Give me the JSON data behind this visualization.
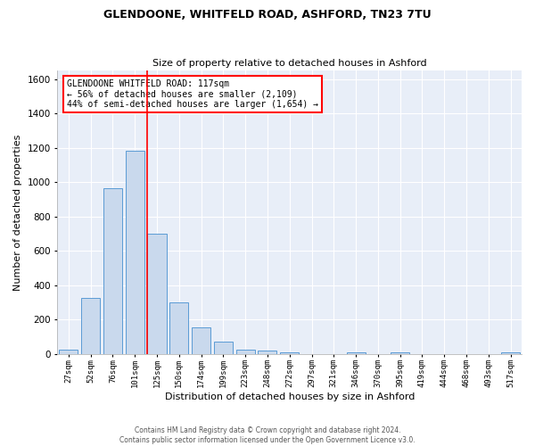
{
  "title1": "GLENDOONE, WHITFELD ROAD, ASHFORD, TN23 7TU",
  "title2": "Size of property relative to detached houses in Ashford",
  "xlabel": "Distribution of detached houses by size in Ashford",
  "ylabel": "Number of detached properties",
  "bar_color": "#c9d9ed",
  "bar_edge_color": "#5b9bd5",
  "background_color": "#e8eef8",
  "grid_color": "white",
  "categories": [
    "27sqm",
    "52sqm",
    "76sqm",
    "101sqm",
    "125sqm",
    "150sqm",
    "174sqm",
    "199sqm",
    "223sqm",
    "248sqm",
    "272sqm",
    "297sqm",
    "321sqm",
    "346sqm",
    "370sqm",
    "395sqm",
    "419sqm",
    "444sqm",
    "468sqm",
    "493sqm",
    "517sqm"
  ],
  "values": [
    25,
    325,
    965,
    1185,
    700,
    300,
    155,
    70,
    25,
    18,
    10,
    0,
    0,
    10,
    0,
    10,
    0,
    0,
    0,
    0,
    10
  ],
  "ylim": [
    0,
    1650
  ],
  "yticks": [
    0,
    200,
    400,
    600,
    800,
    1000,
    1200,
    1400,
    1600
  ],
  "red_line_x": 3.55,
  "annotation_title": "GLENDOONE WHITFELD ROAD: 117sqm",
  "annotation_line2": "← 56% of detached houses are smaller (2,109)",
  "annotation_line3": "44% of semi-detached houses are larger (1,654) →",
  "annotation_box_color": "white",
  "annotation_box_edge": "red",
  "footnote1": "Contains HM Land Registry data © Crown copyright and database right 2024.",
  "footnote2": "Contains public sector information licensed under the Open Government Licence v3.0."
}
